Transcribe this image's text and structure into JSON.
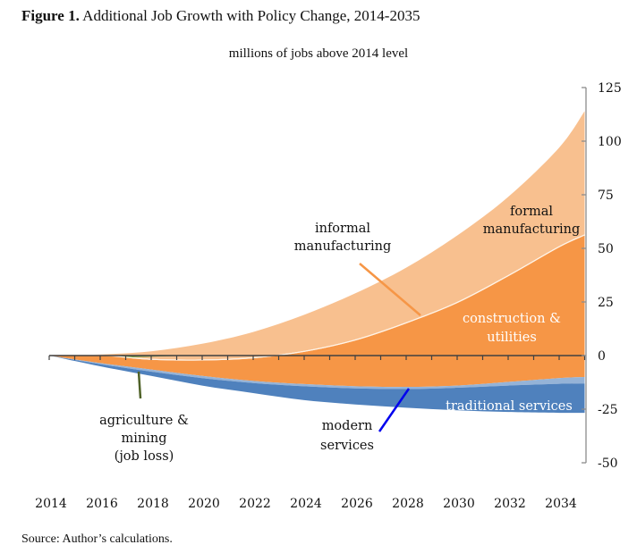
{
  "figure": {
    "label": "Figure 1.",
    "title": "Additional Job Growth with Policy Change, 2014-2035",
    "subtitle": "millions of jobs above 2014 level",
    "source": "Source: Author’s calculations."
  },
  "chart_data": {
    "type": "area",
    "title": "Figure 1. Additional Job Growth with Policy Change, 2014-2035",
    "subtitle": "millions of jobs above 2014 level",
    "xlabel": "",
    "ylabel": "millions of jobs above 2014 level",
    "x": [
      2014,
      2016,
      2018,
      2020,
      2022,
      2024,
      2026,
      2028,
      2030,
      2032,
      2034,
      2035
    ],
    "xlim": [
      2014,
      2035
    ],
    "ylim": [
      -50,
      125
    ],
    "x_ticks": [
      "2014",
      "2016",
      "2018",
      "2020",
      "2022",
      "2024",
      "2026",
      "2028",
      "2030",
      "2032",
      "2034"
    ],
    "y_ticks": [
      125,
      100,
      75,
      50,
      25,
      0,
      -25,
      -50
    ],
    "y_axis_position": "right",
    "grid": false,
    "legend": "none (direct labels)",
    "boundaries_note": "stacked band edges (cumulative values, millions of jobs)",
    "series": [
      {
        "name": "formal manufacturing",
        "color": "#f8c08f",
        "upper": [
          0,
          0.5,
          2,
          5.5,
          11,
          19,
          29,
          41,
          56,
          74,
          97,
          114
        ],
        "lower": [
          0,
          0.3,
          -1.5,
          -1.8,
          -0.8,
          2.2,
          7.5,
          15.5,
          25,
          37.5,
          51,
          56.5
        ]
      },
      {
        "name": "informal manufacturing",
        "color": "#fbe3cc",
        "upper": [
          0,
          0.3,
          -1.5,
          -1.8,
          -0.8,
          2.2,
          7.5,
          15.5,
          25,
          37.5,
          51,
          56.5
        ],
        "lower": [
          0,
          0,
          -2,
          -2.3,
          -1.3,
          1.7,
          7,
          15,
          24.5,
          37,
          50.5,
          56
        ]
      },
      {
        "name": "agriculture & mining (job loss)",
        "color": "#7aa24a",
        "upper": [
          0,
          0,
          0,
          0,
          0,
          0,
          0,
          0,
          0,
          0,
          0,
          0
        ],
        "lower": [
          0,
          -1.2,
          -0.5,
          0,
          0,
          0,
          0,
          0,
          0,
          0,
          0,
          0
        ]
      },
      {
        "name": "construction & utilities",
        "color": "#f69646",
        "upper": [
          0,
          0,
          -2,
          -2.3,
          -1.3,
          1.7,
          7,
          15,
          24.5,
          37,
          50.5,
          56
        ],
        "lower": [
          0,
          -3.5,
          -6.5,
          -9.5,
          -11.8,
          -13.3,
          -14.3,
          -14.6,
          -14,
          -12.3,
          -10.5,
          -10
        ]
      },
      {
        "name": "modern services",
        "color": "#95b3d7",
        "upper": [
          0,
          -3.5,
          -6.5,
          -9.5,
          -11.8,
          -13.3,
          -14.3,
          -14.6,
          -14,
          -12.3,
          -10.5,
          -10
        ],
        "lower": [
          0,
          -4,
          -7.5,
          -10.5,
          -12.8,
          -14.3,
          -15.3,
          -15.6,
          -15,
          -14,
          -13.2,
          -13
        ]
      },
      {
        "name": "traditional services",
        "color": "#4f81bd",
        "upper": [
          0,
          -4,
          -7.5,
          -10.5,
          -12.8,
          -14.3,
          -15.3,
          -15.6,
          -15,
          -14,
          -13.2,
          -13
        ],
        "lower": [
          0,
          -5,
          -9.5,
          -14,
          -17.5,
          -20.8,
          -22.8,
          -24.3,
          -25.5,
          -26.3,
          -26.7,
          -26.7
        ]
      }
    ],
    "annotations": [
      {
        "text": [
          "informal",
          "manufacturing"
        ],
        "leader_color": "#f69646",
        "text_color": "#111111"
      },
      {
        "text": [
          "formal",
          "manufacturing"
        ],
        "text_color": "#111111"
      },
      {
        "text": [
          "construction &",
          "utilities"
        ],
        "text_color": "#ffffff"
      },
      {
        "text": [
          "traditional services"
        ],
        "text_color": "#ffffff"
      },
      {
        "text": [
          "modern",
          "services"
        ],
        "leader_color": "#0000ee",
        "text_color": "#111111"
      },
      {
        "text": [
          "agriculture &",
          "mining",
          "(job loss)"
        ],
        "leader_color": "#4f6228",
        "text_color": "#111111"
      }
    ]
  }
}
